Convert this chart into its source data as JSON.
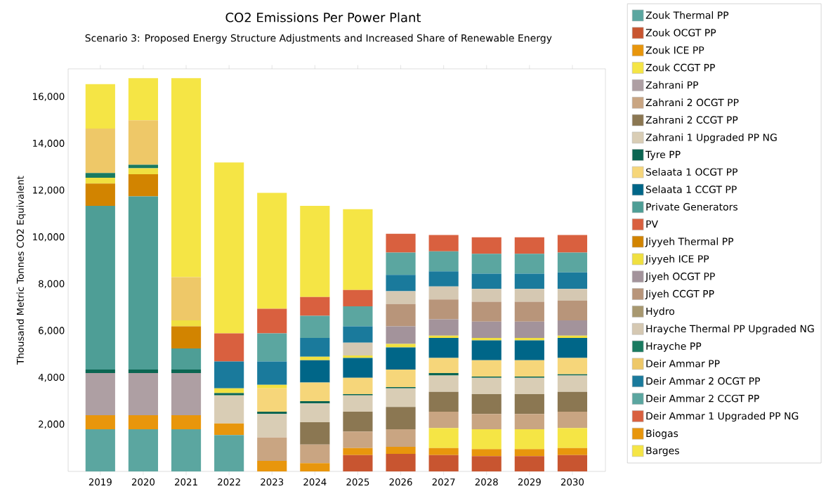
{
  "chart_data": {
    "type": "bar",
    "stacked": true,
    "legend": "right",
    "title": "CO2 Emissions Per Power Plant",
    "subtitle": "Scenario 3: Proposed Energy Structure Adjustments and Increased Share of Renewable Energy",
    "ylabel": "Thousand Metric Tonnes CO2 Equivalent",
    "categories": [
      "2019",
      "2020",
      "2021",
      "2022",
      "2023",
      "2024",
      "2025",
      "2026",
      "2027",
      "2028",
      "2029",
      "2030"
    ],
    "ylim": [
      0,
      17200
    ],
    "yticks": [
      {
        "value": 2000,
        "label": "2,000"
      },
      {
        "value": 4000,
        "label": "4,000"
      },
      {
        "value": 6000,
        "label": "6,000"
      },
      {
        "value": 8000,
        "label": "8,000"
      },
      {
        "value": 10000,
        "label": "10,000"
      },
      {
        "value": 12000,
        "label": "12,000"
      },
      {
        "value": 14000,
        "label": "14,000"
      },
      {
        "value": 16000,
        "label": "16,000"
      }
    ],
    "series": [
      {
        "name": "Zouk Thermal PP",
        "color": "#5ba6a0",
        "values": [
          1800,
          1800,
          1800,
          1550,
          null,
          null,
          null,
          null,
          null,
          null,
          null,
          null
        ]
      },
      {
        "name": "Zouk OCGT PP",
        "color": "#c85530",
        "values": [
          null,
          null,
          null,
          null,
          null,
          null,
          700,
          750,
          700,
          650,
          650,
          700
        ]
      },
      {
        "name": "Zouk ICE PP",
        "color": "#e8960c",
        "values": [
          600,
          600,
          600,
          500,
          450,
          350,
          300,
          300,
          300,
          300,
          300,
          300
        ]
      },
      {
        "name": "Zouk CCGT PP",
        "color": "#f5e545",
        "values": [
          null,
          null,
          null,
          null,
          null,
          null,
          null,
          null,
          850,
          850,
          850,
          850
        ]
      },
      {
        "name": "Zahrani PP",
        "color": "#ae9fa3",
        "values": [
          1800,
          1800,
          1800,
          null,
          null,
          null,
          null,
          null,
          null,
          null,
          null,
          null
        ]
      },
      {
        "name": "Zahrani 2 OCGT PP",
        "color": "#c9a582",
        "values": [
          null,
          null,
          null,
          null,
          1000,
          800,
          700,
          750,
          700,
          650,
          650,
          700
        ]
      },
      {
        "name": "Zahrani 2 CCGT PP",
        "color": "#8b7752",
        "values": [
          null,
          null,
          null,
          null,
          null,
          950,
          850,
          950,
          850,
          850,
          850,
          850
        ]
      },
      {
        "name": "Zahrani 1 Upgraded PP NG",
        "color": "#d9cdb5",
        "values": [
          null,
          null,
          null,
          1200,
          1000,
          800,
          700,
          800,
          700,
          700,
          700,
          700
        ]
      },
      {
        "name": "Tyre PP",
        "color": "#0b6652",
        "values": [
          150,
          150,
          150,
          100,
          100,
          100,
          50,
          50,
          100,
          50,
          50,
          50
        ]
      },
      {
        "name": "Selaata 1 OCGT PP",
        "color": "#f6d67a",
        "values": [
          null,
          null,
          null,
          null,
          1000,
          800,
          700,
          750,
          650,
          700,
          700,
          700
        ]
      },
      {
        "name": "Selaata 1 CCGT PP",
        "color": "#006688",
        "values": [
          null,
          null,
          null,
          null,
          null,
          950,
          850,
          950,
          850,
          850,
          850,
          850
        ]
      },
      {
        "name": "Private Generators",
        "color": "#4e9e96",
        "values": [
          7000,
          7400,
          900,
          null,
          null,
          null,
          null,
          null,
          null,
          null,
          null,
          null
        ]
      },
      {
        "name": "PV",
        "color": "#d9603f",
        "values": [
          null,
          null,
          null,
          null,
          null,
          null,
          null,
          null,
          null,
          null,
          null,
          null
        ]
      },
      {
        "name": "Jiyyeh Thermal PP",
        "color": "#d28400",
        "values": [
          950,
          950,
          950,
          null,
          null,
          null,
          null,
          null,
          null,
          null,
          null,
          null
        ]
      },
      {
        "name": "Jiyyeh ICE PP",
        "color": "#f0e040",
        "values": [
          250,
          250,
          250,
          200,
          150,
          150,
          100,
          150,
          100,
          100,
          100,
          100
        ]
      },
      {
        "name": "Jiyeh OCGT PP",
        "color": "#a3939b",
        "values": [
          null,
          null,
          null,
          null,
          null,
          null,
          null,
          750,
          700,
          700,
          700,
          650
        ]
      },
      {
        "name": "Jiyeh CCGT PP",
        "color": "#b8957a",
        "values": [
          null,
          null,
          null,
          null,
          null,
          null,
          null,
          950,
          850,
          850,
          850,
          850
        ]
      },
      {
        "name": "Hydro",
        "color": "#a89870",
        "values": [
          null,
          null,
          null,
          null,
          null,
          null,
          null,
          null,
          null,
          null,
          null,
          null
        ]
      },
      {
        "name": "Hrayche Thermal PP Upgraded NG",
        "color": "#d5c8b2",
        "values": [
          null,
          null,
          null,
          null,
          null,
          null,
          550,
          550,
          550,
          550,
          550,
          500
        ]
      },
      {
        "name": "Hrayche PP",
        "color": "#1a7a60",
        "values": [
          200,
          150,
          null,
          null,
          null,
          null,
          null,
          null,
          null,
          null,
          null,
          null
        ]
      },
      {
        "name": "Deir Ammar PP",
        "color": "#eec868",
        "values": [
          1900,
          1900,
          1850,
          null,
          null,
          null,
          null,
          null,
          null,
          null,
          null,
          null
        ]
      },
      {
        "name": "Deir Ammar 2 OCGT PP",
        "color": "#1a7a9c",
        "values": [
          null,
          null,
          null,
          1150,
          1000,
          800,
          700,
          700,
          650,
          650,
          650,
          700
        ]
      },
      {
        "name": "Deir Ammar 2 CCGT PP",
        "color": "#5ba6a0",
        "values": [
          null,
          null,
          null,
          null,
          1200,
          950,
          850,
          950,
          850,
          850,
          850,
          850
        ]
      },
      {
        "name": "Deir Ammar 1 Upgraded PP NG",
        "color": "#d9603f",
        "values": [
          null,
          null,
          null,
          1200,
          1050,
          800,
          700,
          800,
          700,
          700,
          700,
          750
        ]
      },
      {
        "name": "Biogas",
        "color": "#e8960c",
        "values": [
          null,
          null,
          null,
          null,
          null,
          null,
          null,
          null,
          null,
          null,
          null,
          null
        ]
      },
      {
        "name": "Barges",
        "color": "#f5e545",
        "values": [
          1900,
          1800,
          8500,
          7300,
          4950,
          3900,
          3450,
          null,
          null,
          null,
          null,
          null
        ]
      }
    ]
  }
}
